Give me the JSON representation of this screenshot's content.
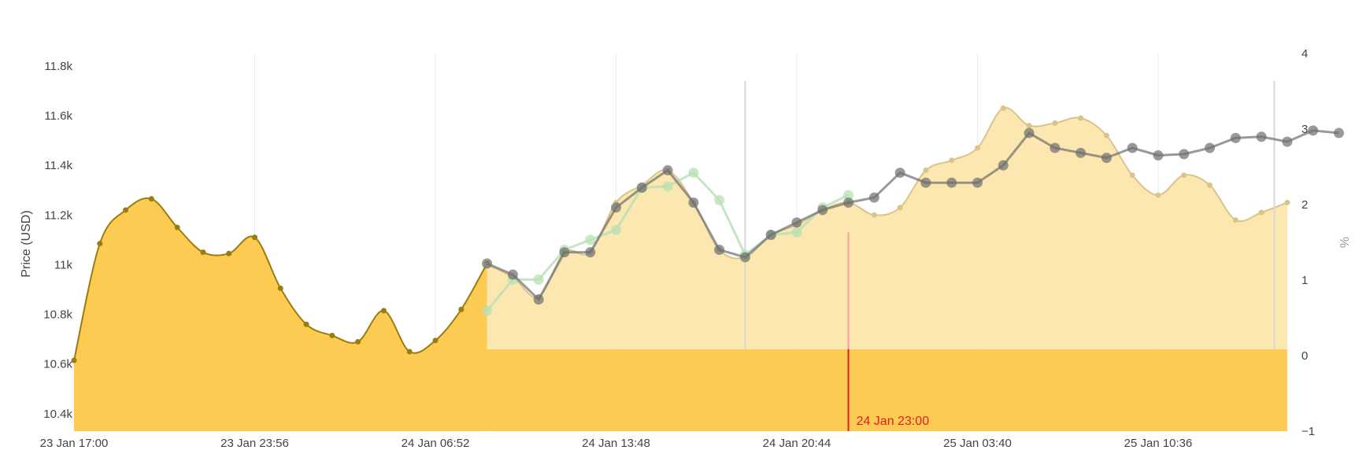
{
  "chart_data": {
    "type": "area",
    "xlabel": "",
    "ylabel": "Price (USD)",
    "y2label": "%",
    "ylim": [
      10330,
      11850
    ],
    "y2lim": [
      -1,
      4
    ],
    "x_ticks": [
      "23 Jan 17:00",
      "23 Jan 23:56",
      "24 Jan 06:52",
      "24 Jan 13:48",
      "24 Jan 20:44",
      "25 Jan 03:40",
      "25 Jan 10:36"
    ],
    "y_ticks": [
      "10.4k",
      "10.6k",
      "10.8k",
      "11k",
      "11.2k",
      "11.4k",
      "11.6k",
      "11.8k"
    ],
    "y_tick_values": [
      10400,
      10600,
      10800,
      11000,
      11200,
      11400,
      11600,
      11800
    ],
    "y2_ticks": [
      "−1",
      "0",
      "1",
      "2",
      "3",
      "4"
    ],
    "y2_tick_values": [
      -1,
      0,
      1,
      2,
      3,
      4
    ],
    "grid": true,
    "colors": {
      "historical_fill": "#fecb52",
      "historical_line": "#9a7d10",
      "forecast_fill": "#fde7b0",
      "forecast_line": "#d9c48c",
      "green_series": "#b7e0b3",
      "dark_series": "#6e6e6e",
      "marker_line": "#e02020"
    },
    "marker": {
      "label": "24 Jan 23:00",
      "x_hour": 30.0
    },
    "baseline_price": 10660,
    "series": [
      {
        "role": "historical",
        "x_hour": [
          0,
          1,
          2,
          3,
          4,
          5,
          6,
          7,
          8,
          9,
          10,
          11,
          12,
          13,
          14,
          15,
          16
        ],
        "values": [
          10615,
          11085,
          11220,
          11265,
          11150,
          11050,
          11045,
          11110,
          10905,
          10760,
          10715,
          10690,
          10815,
          10650,
          10695,
          10820,
          11005
        ]
      },
      {
        "role": "forecast",
        "x_hour": [
          16,
          17,
          18,
          19,
          20,
          21,
          22,
          23,
          24,
          25,
          26,
          27,
          28,
          29,
          30,
          31,
          32,
          33,
          34,
          35,
          36,
          37,
          38,
          39,
          40,
          41,
          42,
          43,
          44,
          45,
          46,
          47
        ],
        "values": [
          11000,
          10950,
          10870,
          11050,
          11050,
          11250,
          11320,
          11380,
          11250,
          11060,
          11030,
          11120,
          11160,
          11220,
          11250,
          11200,
          11230,
          11380,
          11420,
          11470,
          11630,
          11560,
          11570,
          11590,
          11520,
          11360,
          11280,
          11360,
          11320,
          11180,
          11210,
          11250
        ]
      },
      {
        "role": "green",
        "x_hour": [
          16,
          17,
          18,
          19,
          20,
          21,
          22,
          23,
          24,
          25,
          26,
          27,
          28,
          29,
          30
        ],
        "values": [
          10815,
          10940,
          10940,
          11060,
          11100,
          11140,
          11310,
          11315,
          11370,
          11260,
          11040,
          11120,
          11130,
          11230,
          11280
        ]
      },
      {
        "role": "dark",
        "x_hour": [
          16,
          17,
          18,
          19,
          20,
          21,
          22,
          23,
          24,
          25,
          26,
          27,
          28,
          29,
          30,
          31,
          32,
          33,
          34,
          35,
          36,
          37,
          38,
          39,
          40,
          41,
          42,
          43,
          44,
          45,
          46,
          47,
          48,
          49
        ],
        "values": [
          11005,
          10960,
          10860,
          11050,
          11050,
          11230,
          11310,
          11380,
          11250,
          11060,
          11030,
          11120,
          11170,
          11220,
          11250,
          11270,
          11370,
          11330,
          11330,
          11330,
          11400,
          11530,
          11470,
          11450,
          11430,
          11470,
          11440,
          11445,
          11470,
          11510,
          11515,
          11495,
          11540,
          11530
        ]
      }
    ]
  }
}
